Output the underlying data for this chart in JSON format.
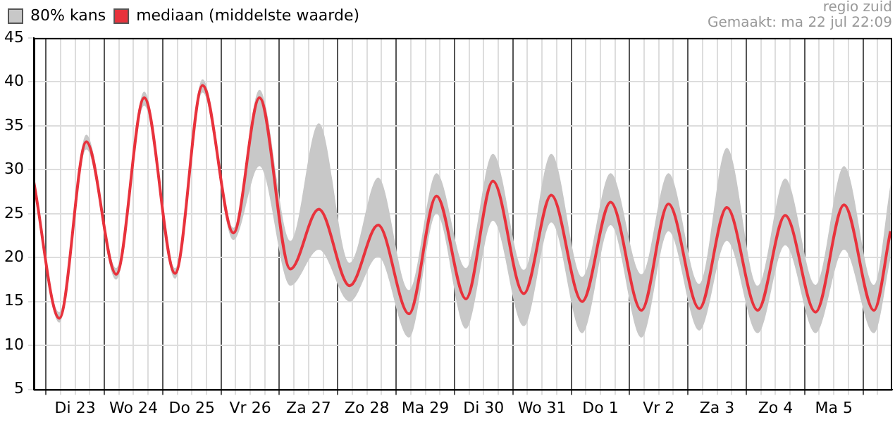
{
  "chart_data": {
    "type": "line",
    "annotations": [
      "regio zuid",
      "Gemaakt: ma 22 jul 22:09"
    ],
    "x": [
      "--07-22T19:00",
      "--07-23T05:30",
      "--07-23T16:36",
      "--07-24T04:54",
      "--07-24T16:24",
      "--07-25T05:06",
      "--07-25T16:24",
      "--07-26T05:06",
      "--07-26T15:48",
      "--07-27T04:30",
      "--07-27T16:12",
      "--07-28T04:54",
      "--07-28T16:36",
      "--07-29T05:18",
      "--07-29T16:36",
      "--07-30T04:42",
      "--07-30T15:48",
      "--07-31T04:30",
      "--07-31T15:48",
      "--08-01T04:30",
      "--08-01T16:12",
      "--08-02T04:54",
      "--08-02T16:00",
      "--08-03T04:42",
      "--08-03T16:00",
      "--08-04T04:42",
      "--08-04T16:00",
      "--08-05T04:30",
      "--08-05T16:12",
      "--08-06T04:30",
      "--08-06T11:18"
    ],
    "series": [
      {
        "name": "80% kans",
        "type": "area",
        "color": "#c8c8c8",
        "values": [
          null,
          null,
          null,
          null,
          null,
          null,
          null,
          null,
          null,
          null,
          null,
          null,
          null,
          null,
          null,
          null,
          null,
          null,
          null,
          null,
          null,
          null,
          null,
          null,
          null,
          null,
          null,
          null,
          null,
          null,
          null
        ],
        "lower": [
          28.1,
          12.6,
          32.3,
          17.5,
          37.3,
          17.6,
          38.8,
          22,
          30.4,
          16.8,
          20.9,
          15,
          20.1,
          10.9,
          25,
          11.9,
          24.2,
          12.2,
          24,
          11.4,
          23.7,
          10.9,
          23,
          11.7,
          21.9,
          11.4,
          21.4,
          11.4,
          20.9,
          11.4,
          19.9
        ],
        "upper": [
          29.1,
          13.8,
          34,
          18.8,
          38.9,
          18.8,
          40.3,
          23.4,
          39.1,
          21.9,
          35.3,
          19.4,
          29.1,
          16.3,
          29.6,
          18.8,
          31.8,
          18.6,
          31.8,
          17.8,
          29.6,
          18.1,
          29.6,
          17,
          32.5,
          16.8,
          29,
          16.9,
          30.4,
          16.9,
          28.3
        ]
      },
      {
        "name": "mediaan (middelste waarde)",
        "color": "#e8323c",
        "values": [
          28.6,
          13.1,
          33.2,
          18.1,
          38.2,
          18.2,
          39.6,
          22.8,
          38.2,
          18.7,
          25.5,
          16.8,
          23.7,
          13.6,
          27,
          15.3,
          28.7,
          15.9,
          27.1,
          15,
          26.3,
          14,
          26.1,
          14.2,
          25.7,
          14,
          24.8,
          13.8,
          26,
          14,
          23
        ]
      }
    ],
    "xlim": [
      "--07-22T19:00",
      "--08-06T12:00"
    ],
    "xticks": [
      {
        "value": "--07-23T00:00",
        "label": null
      },
      {
        "value": "--07-23T06:00",
        "label": null
      },
      {
        "value": "--07-23T12:00",
        "label": "Di 23"
      },
      {
        "value": "--07-23T18:00",
        "label": null
      },
      {
        "value": "--07-24T00:00",
        "label": null
      },
      {
        "value": "--07-24T06:00",
        "label": null
      },
      {
        "value": "--07-24T12:00",
        "label": "Wo 24"
      },
      {
        "value": "--07-24T18:00",
        "label": null
      },
      {
        "value": "--07-25T00:00",
        "label": null
      },
      {
        "value": "--07-25T06:00",
        "label": null
      },
      {
        "value": "--07-25T12:00",
        "label": "Do 25"
      },
      {
        "value": "--07-25T18:00",
        "label": null
      },
      {
        "value": "--07-26T00:00",
        "label": null
      },
      {
        "value": "--07-26T06:00",
        "label": null
      },
      {
        "value": "--07-26T12:00",
        "label": "Vr 26"
      },
      {
        "value": "--07-26T18:00",
        "label": null
      },
      {
        "value": "--07-27T00:00",
        "label": null
      },
      {
        "value": "--07-27T06:00",
        "label": null
      },
      {
        "value": "--07-27T12:00",
        "label": "Za 27"
      },
      {
        "value": "--07-27T18:00",
        "label": null
      },
      {
        "value": "--07-28T00:00",
        "label": null
      },
      {
        "value": "--07-28T06:00",
        "label": null
      },
      {
        "value": "--07-28T12:00",
        "label": "Zo 28"
      },
      {
        "value": "--07-28T18:00",
        "label": null
      },
      {
        "value": "--07-29T00:00",
        "label": null
      },
      {
        "value": "--07-29T06:00",
        "label": null
      },
      {
        "value": "--07-29T12:00",
        "label": "Ma 29"
      },
      {
        "value": "--07-29T18:00",
        "label": null
      },
      {
        "value": "--07-30T00:00",
        "label": null
      },
      {
        "value": "--07-30T06:00",
        "label": null
      },
      {
        "value": "--07-30T12:00",
        "label": "Di 30"
      },
      {
        "value": "--07-30T18:00",
        "label": null
      },
      {
        "value": "--07-31T00:00",
        "label": null
      },
      {
        "value": "--07-31T06:00",
        "label": null
      },
      {
        "value": "--07-31T12:00",
        "label": "Wo 31"
      },
      {
        "value": "--07-31T18:00",
        "label": null
      },
      {
        "value": "--08-01T00:00",
        "label": null
      },
      {
        "value": "--08-01T06:00",
        "label": null
      },
      {
        "value": "--08-01T12:00",
        "label": "Do 1"
      },
      {
        "value": "--08-01T18:00",
        "label": null
      },
      {
        "value": "--08-02T00:00",
        "label": null
      },
      {
        "value": "--08-02T06:00",
        "label": null
      },
      {
        "value": "--08-02T12:00",
        "label": "Vr 2"
      },
      {
        "value": "--08-02T18:00",
        "label": null
      },
      {
        "value": "--08-03T00:00",
        "label": null
      },
      {
        "value": "--08-03T06:00",
        "label": null
      },
      {
        "value": "--08-03T12:00",
        "label": "Za 3"
      },
      {
        "value": "--08-03T18:00",
        "label": null
      },
      {
        "value": "--08-04T00:00",
        "label": null
      },
      {
        "value": "--08-04T06:00",
        "label": null
      },
      {
        "value": "--08-04T12:00",
        "label": "Zo 4"
      },
      {
        "value": "--08-04T18:00",
        "label": null
      },
      {
        "value": "--08-05T00:00",
        "label": null
      },
      {
        "value": "--08-05T06:00",
        "label": null
      },
      {
        "value": "--08-05T12:00",
        "label": "Ma 5"
      },
      {
        "value": "--08-05T18:00",
        "label": null
      },
      {
        "value": "--08-06T00:00",
        "label": null
      },
      {
        "value": "--08-06T06:00",
        "label": null
      }
    ],
    "ylim": [
      5,
      45
    ],
    "yticks": [
      5,
      10,
      15,
      20,
      25,
      30,
      35,
      40,
      45
    ],
    "grid": true,
    "legend": "top left",
    "marker": "none",
    "line_style": "solid"
  }
}
